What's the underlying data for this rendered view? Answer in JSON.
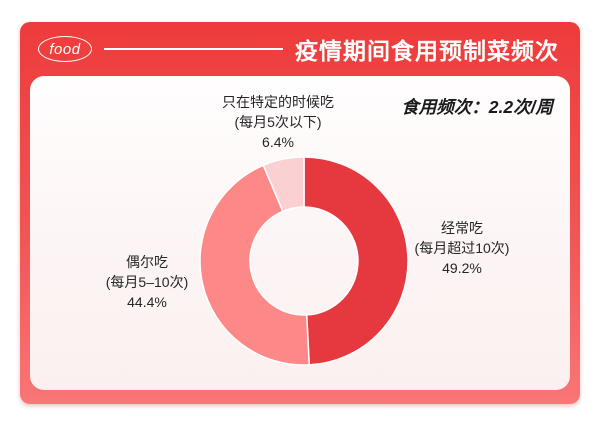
{
  "header": {
    "logo_text": "food",
    "title": "疫情期间食用预制菜频次"
  },
  "chart_data": {
    "type": "pie",
    "variant": "donut",
    "title": "疫情期间食用预制菜频次",
    "annotation": "食用频次：2.2次/周",
    "unit": "%",
    "start_angle_deg": 0,
    "direction": "clockwise",
    "inner_radius_ratio": 0.52,
    "segments": [
      {
        "label": "经常吃",
        "sublabel": "(每月超过10次)",
        "value": 49.2,
        "value_label": "49.2%",
        "color": "#e6393f"
      },
      {
        "label": "偶尔吃",
        "sublabel": "(每月5–10次)",
        "value": 44.4,
        "value_label": "44.4%",
        "color": "#fd8888"
      },
      {
        "label": "只在特定的时候吃",
        "sublabel": "(每月5次以下)",
        "value": 6.4,
        "value_label": "6.4%",
        "color": "#fbd0d3"
      }
    ],
    "colors": {
      "frame_top": "#ee3b3b",
      "frame_bottom": "#f97676",
      "card_background": "#fbf0f0",
      "label_text": "#262626",
      "title_text": "#ffffff"
    }
  }
}
